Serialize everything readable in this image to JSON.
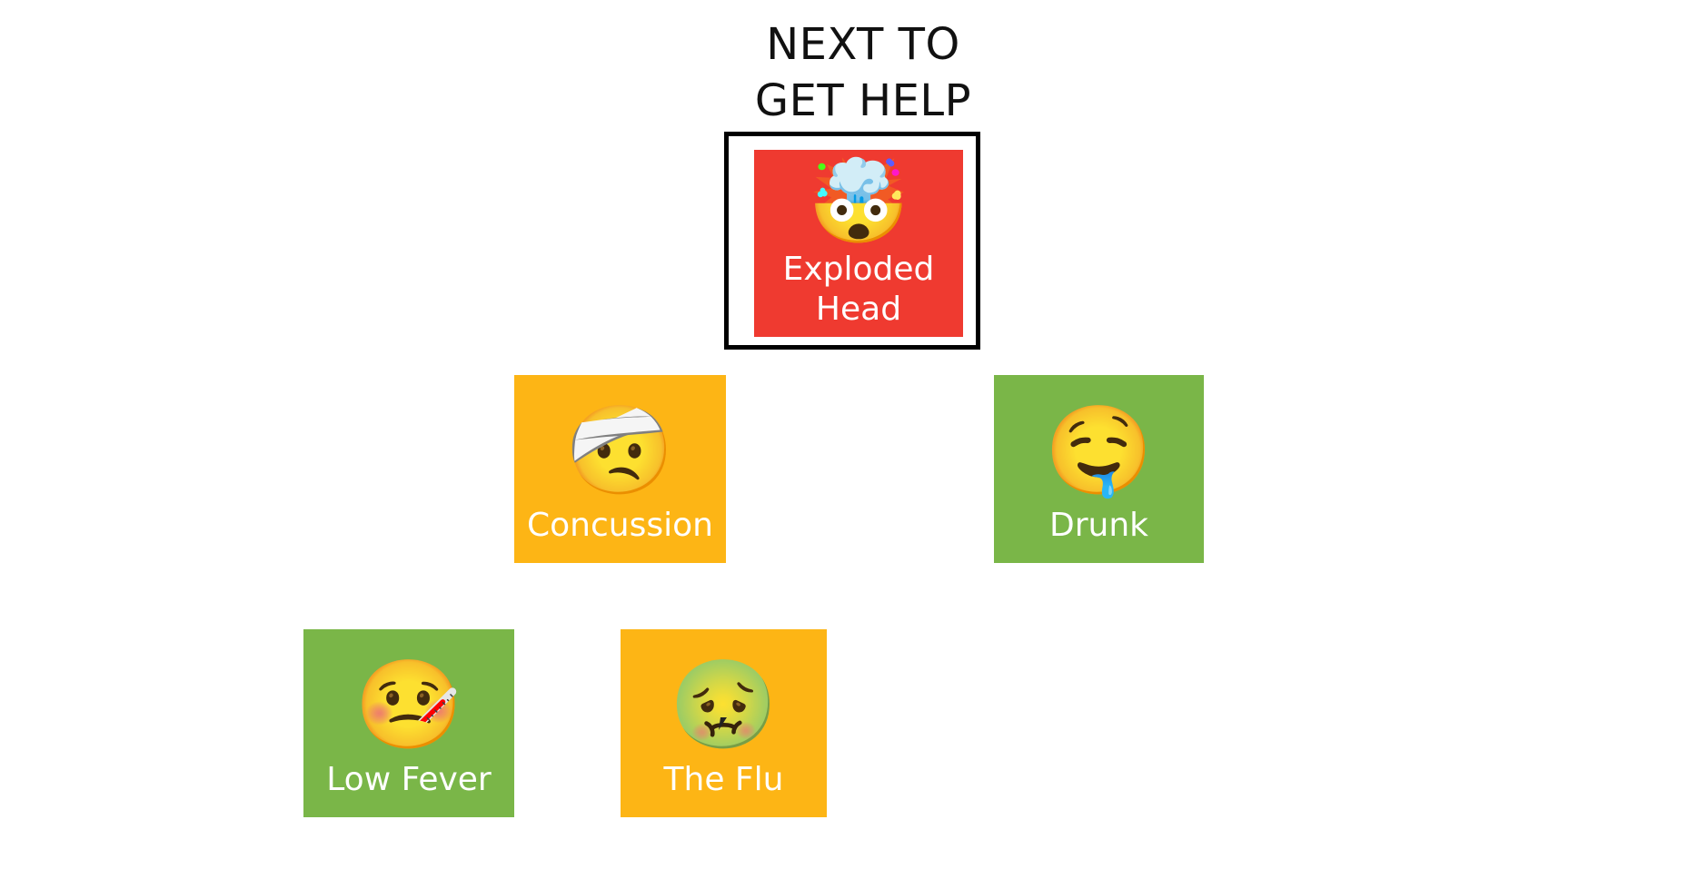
{
  "header": {
    "line1": "NEXT TO",
    "line2": "GET HELP"
  },
  "cards": {
    "exploded_head": {
      "label_line1": "Exploded",
      "label_line2": "Head",
      "emoji": "🤯",
      "icon": "exploding-head-icon",
      "color": "#ef3a30"
    },
    "concussion": {
      "label": "Concussion",
      "emoji": "🤕",
      "icon": "bandaged-face-icon",
      "color": "#fdb515"
    },
    "drunk": {
      "label": "Drunk",
      "emoji": "🤤",
      "icon": "drooling-face-icon",
      "color": "#7ab648"
    },
    "low_fever": {
      "label": "Low Fever",
      "emoji": "🤒",
      "icon": "thermometer-face-icon",
      "color": "#7ab648"
    },
    "the_flu": {
      "label": "The Flu",
      "emoji": "🤢",
      "icon": "nauseated-face-icon",
      "color": "#fdb515"
    }
  }
}
